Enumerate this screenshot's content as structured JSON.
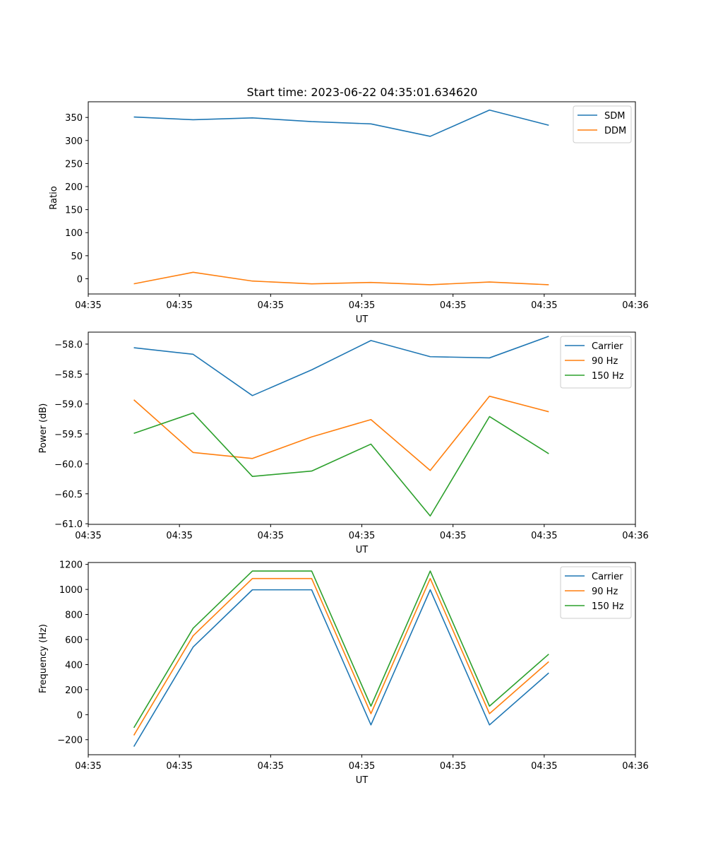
{
  "figure_title": "Start time: 2023-06-22 04:35:01.634620",
  "chart_data": [
    {
      "type": "line",
      "title": "Start time: 2023-06-22 04:35:01.634620",
      "xlabel": "UT",
      "ylabel": "Ratio",
      "x": [
        0.5,
        1.15,
        1.8,
        2.45,
        3.1,
        3.75,
        4.4,
        5.05
      ],
      "xlim": [
        -0.0,
        6.0
      ],
      "x_ticks": [
        0,
        1,
        2,
        3,
        4,
        5,
        6
      ],
      "x_tick_labels": [
        "04:35",
        "04:35",
        "04:35",
        "04:35",
        "04:35",
        "04:35",
        "04:36"
      ],
      "ylim": [
        -33,
        384
      ],
      "y_ticks": [
        0,
        50,
        100,
        150,
        200,
        250,
        300,
        350
      ],
      "y_tick_labels": [
        "0",
        "50",
        "100",
        "150",
        "200",
        "250",
        "300",
        "350"
      ],
      "grid": false,
      "legend_position": "top-right",
      "series": [
        {
          "name": "SDM",
          "color": "#1f77b4",
          "values": [
            351,
            345,
            349,
            341,
            336,
            309,
            366,
            333
          ]
        },
        {
          "name": "DDM",
          "color": "#ff7f0e",
          "values": [
            -11,
            14,
            -5,
            -11,
            -8,
            -13,
            -7,
            -13
          ]
        }
      ]
    },
    {
      "type": "line",
      "title": "",
      "xlabel": "UT",
      "ylabel": "Power (dB)",
      "x": [
        0.5,
        1.15,
        1.8,
        2.45,
        3.1,
        3.75,
        4.4,
        5.05
      ],
      "xlim": [
        -0.0,
        6.0
      ],
      "x_ticks": [
        0,
        1,
        2,
        3,
        4,
        5,
        6
      ],
      "x_tick_labels": [
        "04:35",
        "04:35",
        "04:35",
        "04:35",
        "04:35",
        "04:35",
        "04:36"
      ],
      "ylim": [
        -61.01,
        -57.8
      ],
      "y_ticks": [
        -58.0,
        -58.5,
        -59.0,
        -59.5,
        -60.0,
        -60.5,
        -61.0
      ],
      "y_tick_labels": [
        "−58.0",
        "−58.5",
        "−59.0",
        "−59.5",
        "−60.0",
        "−60.5",
        "−61.0"
      ],
      "grid": false,
      "legend_position": "top-right",
      "series": [
        {
          "name": "Carrier",
          "color": "#1f77b4",
          "values": [
            -58.06,
            -58.17,
            -58.86,
            -58.43,
            -57.94,
            -58.21,
            -58.23,
            -57.87
          ]
        },
        {
          "name": "90 Hz",
          "color": "#ff7f0e",
          "values": [
            -58.93,
            -59.81,
            -59.91,
            -59.55,
            -59.26,
            -60.11,
            -58.87,
            -59.13
          ]
        },
        {
          "name": "150 Hz",
          "color": "#2ca02c",
          "values": [
            -59.49,
            -59.15,
            -60.21,
            -60.12,
            -59.67,
            -60.87,
            -59.21,
            -59.83
          ]
        }
      ]
    },
    {
      "type": "line",
      "title": "",
      "xlabel": "UT",
      "ylabel": "Frequency (Hz)",
      "x": [
        0.5,
        1.15,
        1.8,
        2.45,
        3.1,
        3.75,
        4.4,
        5.05
      ],
      "xlim": [
        -0.0,
        6.0
      ],
      "x_ticks": [
        0,
        1,
        2,
        3,
        4,
        5,
        6
      ],
      "x_tick_labels": [
        "04:35",
        "04:35",
        "04:35",
        "04:35",
        "04:35",
        "04:35",
        "04:36"
      ],
      "ylim": [
        -320,
        1215
      ],
      "y_ticks": [
        -200,
        0,
        200,
        400,
        600,
        800,
        1000,
        1200
      ],
      "y_tick_labels": [
        "−200",
        "0",
        "200",
        "400",
        "600",
        "800",
        "1000",
        "1200"
      ],
      "grid": false,
      "legend_position": "top-right",
      "series": [
        {
          "name": "Carrier",
          "color": "#1f77b4",
          "values": [
            -255,
            540,
            997,
            997,
            -82,
            997,
            -82,
            333
          ]
        },
        {
          "name": "90 Hz",
          "color": "#ff7f0e",
          "values": [
            -165,
            630,
            1087,
            1087,
            8,
            1087,
            8,
            423
          ]
        },
        {
          "name": "150 Hz",
          "color": "#2ca02c",
          "values": [
            -105,
            690,
            1147,
            1147,
            68,
            1147,
            68,
            483
          ]
        }
      ]
    }
  ]
}
